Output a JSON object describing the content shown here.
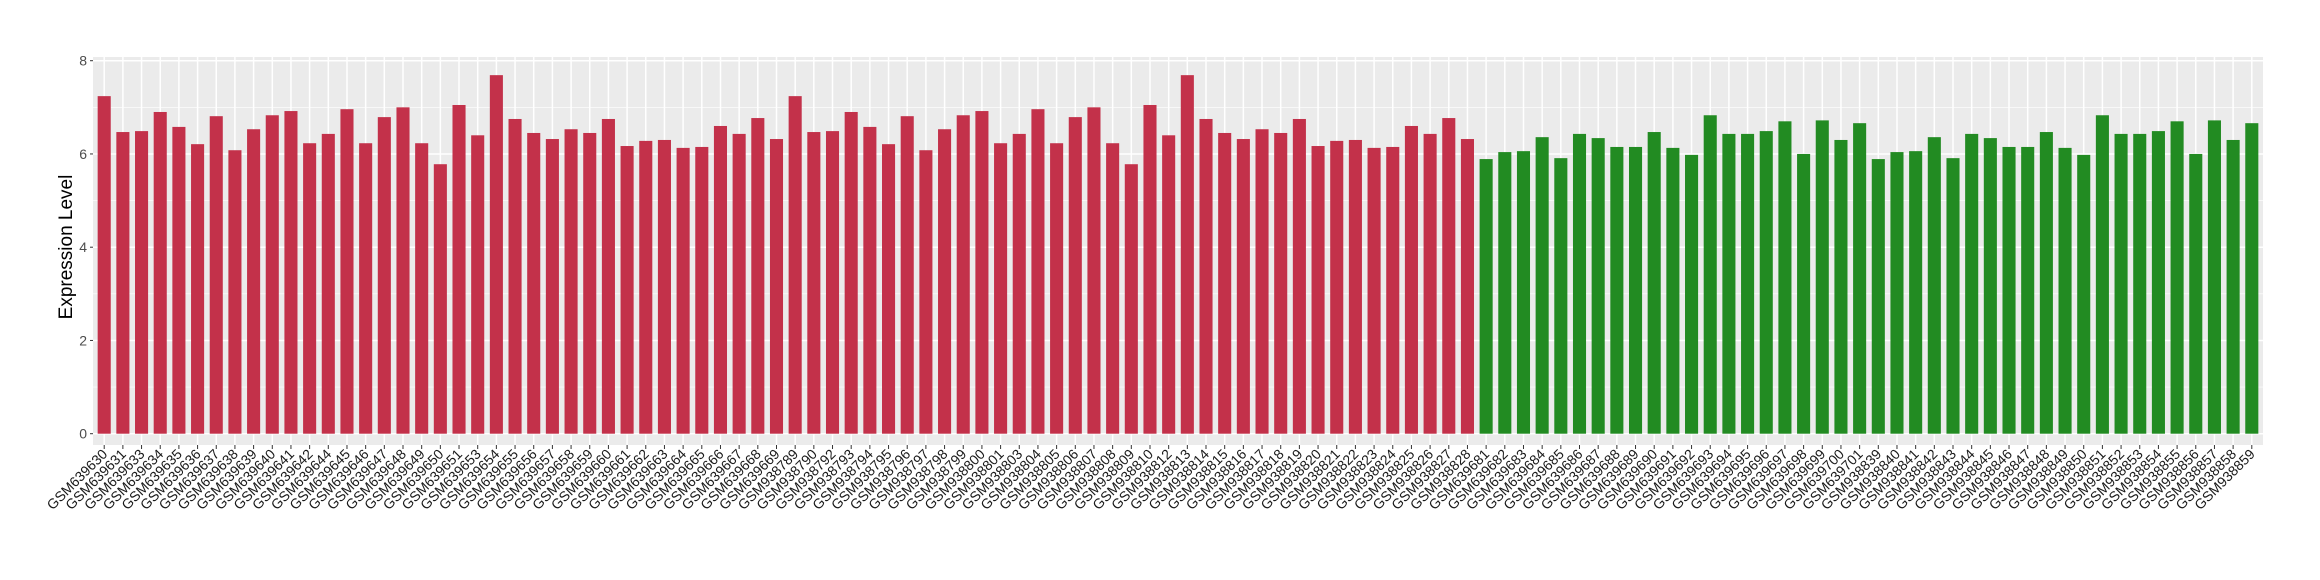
{
  "chart_data": {
    "type": "bar",
    "title": "",
    "xlabel": "",
    "ylabel": "Expression Level",
    "ylim": [
      0,
      8
    ],
    "yticks": [
      0,
      2,
      4,
      6,
      8
    ],
    "grid": true,
    "legend": "none",
    "colors": {
      "group1": "#C3314A",
      "group2": "#228B22",
      "panel": "#EBEBEB",
      "grid": "#FFFFFF"
    },
    "categories": [
      "GSM639630",
      "GSM639631",
      "GSM639633",
      "GSM639634",
      "GSM639635",
      "GSM639636",
      "GSM639637",
      "GSM639638",
      "GSM639639",
      "GSM639640",
      "GSM639641",
      "GSM639642",
      "GSM639644",
      "GSM639645",
      "GSM639646",
      "GSM639647",
      "GSM639648",
      "GSM639649",
      "GSM639650",
      "GSM639651",
      "GSM639653",
      "GSM639654",
      "GSM639655",
      "GSM639656",
      "GSM639657",
      "GSM639658",
      "GSM639659",
      "GSM639660",
      "GSM639661",
      "GSM639662",
      "GSM639663",
      "GSM639664",
      "GSM639665",
      "GSM639666",
      "GSM639667",
      "GSM639668",
      "GSM639669",
      "GSM938789",
      "GSM938790",
      "GSM938792",
      "GSM938793",
      "GSM938794",
      "GSM938795",
      "GSM938796",
      "GSM938797",
      "GSM938798",
      "GSM938799",
      "GSM938800",
      "GSM938801",
      "GSM938803",
      "GSM938804",
      "GSM938805",
      "GSM938806",
      "GSM938807",
      "GSM938808",
      "GSM938809",
      "GSM938810",
      "GSM938812",
      "GSM938813",
      "GSM938814",
      "GSM938815",
      "GSM938816",
      "GSM938817",
      "GSM938818",
      "GSM938819",
      "GSM938820",
      "GSM938821",
      "GSM938822",
      "GSM938823",
      "GSM938824",
      "GSM938825",
      "GSM938826",
      "GSM938827",
      "GSM938828",
      "GSM639681",
      "GSM639682",
      "GSM639683",
      "GSM639684",
      "GSM639685",
      "GSM639686",
      "GSM639687",
      "GSM639688",
      "GSM639689",
      "GSM639690",
      "GSM639691",
      "GSM639692",
      "GSM639693",
      "GSM639694",
      "GSM639695",
      "GSM639696",
      "GSM639697",
      "GSM639698",
      "GSM639699",
      "GSM639700",
      "GSM639701",
      "GSM938839",
      "GSM938840",
      "GSM938841",
      "GSM938842",
      "GSM938843",
      "GSM938844",
      "GSM938845",
      "GSM938846",
      "GSM938847",
      "GSM938848",
      "GSM938849",
      "GSM938850",
      "GSM938851",
      "GSM938852",
      "GSM938853",
      "GSM938854",
      "GSM938855",
      "GSM938856",
      "GSM938857",
      "GSM938858",
      "GSM938859"
    ],
    "values": [
      7.24,
      6.47,
      6.49,
      6.9,
      6.58,
      6.21,
      6.81,
      6.08,
      6.53,
      6.83,
      6.92,
      6.23,
      6.43,
      6.96,
      6.23,
      6.79,
      7.0,
      6.23,
      5.78,
      7.05,
      6.4,
      7.69,
      6.75,
      6.45,
      6.32,
      6.53,
      6.45,
      6.75,
      6.17,
      6.28,
      6.3,
      6.13,
      6.15,
      6.6,
      6.43,
      6.77,
      6.32,
      7.24,
      6.47,
      6.49,
      6.9,
      6.58,
      6.21,
      6.81,
      6.08,
      6.53,
      6.83,
      6.92,
      6.23,
      6.43,
      6.96,
      6.23,
      6.79,
      7.0,
      6.23,
      5.78,
      7.05,
      6.4,
      7.69,
      6.75,
      6.45,
      6.32,
      6.53,
      6.45,
      6.75,
      6.17,
      6.28,
      6.3,
      6.13,
      6.15,
      6.6,
      6.43,
      6.77,
      6.32,
      5.89,
      6.04,
      6.06,
      6.36,
      5.91,
      6.43,
      6.34,
      6.15,
      6.15,
      6.47,
      6.13,
      5.98,
      6.83,
      6.43,
      6.43,
      6.49,
      6.7,
      6.0,
      6.72,
      6.3,
      6.66,
      5.89,
      6.04,
      6.06,
      6.36,
      5.91,
      6.43,
      6.34,
      6.15,
      6.15,
      6.47,
      6.13,
      5.98,
      6.83,
      6.43,
      6.43,
      6.49,
      6.7,
      6.0,
      6.72,
      6.3,
      6.66
    ],
    "groups": [
      "group1",
      "group1",
      "group1",
      "group1",
      "group1",
      "group1",
      "group1",
      "group1",
      "group1",
      "group1",
      "group1",
      "group1",
      "group1",
      "group1",
      "group1",
      "group1",
      "group1",
      "group1",
      "group1",
      "group1",
      "group1",
      "group1",
      "group1",
      "group1",
      "group1",
      "group1",
      "group1",
      "group1",
      "group1",
      "group1",
      "group1",
      "group1",
      "group1",
      "group1",
      "group1",
      "group1",
      "group1",
      "group1",
      "group1",
      "group1",
      "group1",
      "group1",
      "group1",
      "group1",
      "group1",
      "group1",
      "group1",
      "group1",
      "group1",
      "group1",
      "group1",
      "group1",
      "group1",
      "group1",
      "group1",
      "group1",
      "group1",
      "group1",
      "group1",
      "group1",
      "group1",
      "group1",
      "group1",
      "group1",
      "group1",
      "group1",
      "group1",
      "group1",
      "group1",
      "group1",
      "group1",
      "group1",
      "group1",
      "group1",
      "group2",
      "group2",
      "group2",
      "group2",
      "group2",
      "group2",
      "group2",
      "group2",
      "group2",
      "group2",
      "group2",
      "group2",
      "group2",
      "group2",
      "group2",
      "group2",
      "group2",
      "group2",
      "group2",
      "group2",
      "group2",
      "group2",
      "group2",
      "group2",
      "group2",
      "group2",
      "group2",
      "group2",
      "group2",
      "group2",
      "group2",
      "group2",
      "group2",
      "group2",
      "group2",
      "group2",
      "group2",
      "group2",
      "group2",
      "group2",
      "group2",
      "group2"
    ]
  }
}
